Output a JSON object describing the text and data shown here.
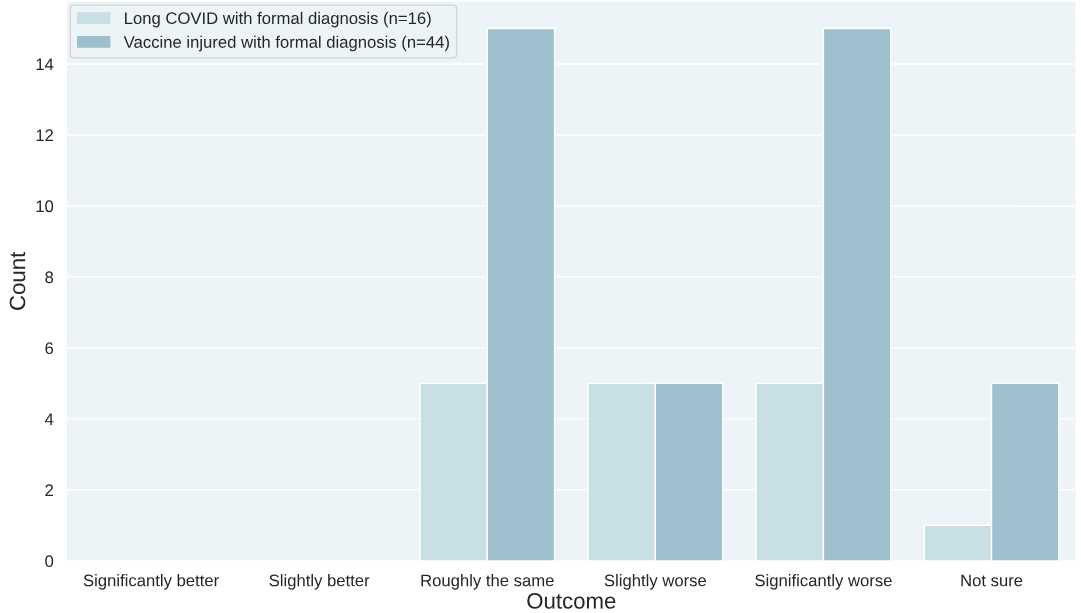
{
  "chart_data": {
    "type": "bar",
    "xlabel": "Outcome",
    "ylabel": "Count",
    "categories": [
      "Significantly better",
      "Slightly better",
      "Roughly the same",
      "Slightly worse",
      "Significantly worse",
      "Not sure"
    ],
    "series": [
      {
        "name": "Long COVID with formal diagnosis (n=16)",
        "color": "#c8dfe3",
        "values": [
          0,
          0,
          5,
          5,
          5,
          1
        ]
      },
      {
        "name": "Vaccine injured with formal diagnosis (n=44)",
        "color": "#9ebfcc",
        "values": [
          0,
          0,
          15,
          5,
          15,
          5
        ]
      }
    ],
    "ylim": [
      0,
      15.75
    ],
    "yticks": [
      0,
      2,
      4,
      6,
      8,
      10,
      12,
      14
    ],
    "grid": "y",
    "legend": "top left"
  }
}
